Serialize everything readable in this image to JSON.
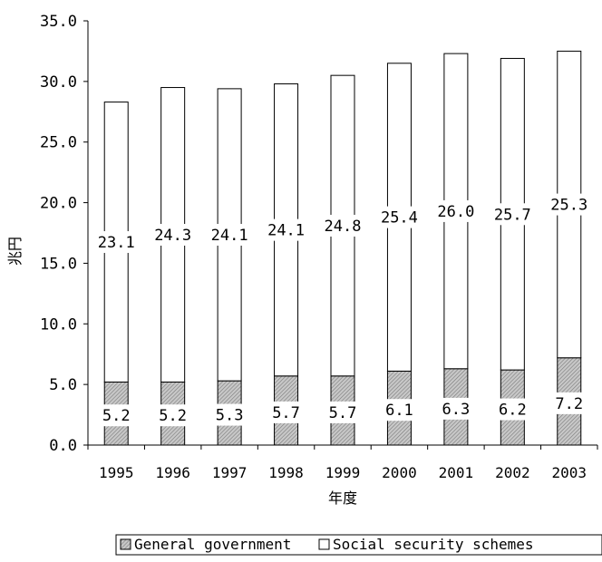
{
  "chart_data": {
    "type": "bar",
    "stacked": true,
    "categories": [
      "1995",
      "1996",
      "1997",
      "1998",
      "1999",
      "2000",
      "2001",
      "2002",
      "2003"
    ],
    "series": [
      {
        "name": "General government",
        "values": [
          5.2,
          5.2,
          5.3,
          5.7,
          5.7,
          6.1,
          6.3,
          6.2,
          7.2
        ],
        "labels": [
          "5.2",
          "5.2",
          "5.3",
          "5.7",
          "5.7",
          "6.1",
          "6.3",
          "6.2",
          "7.2"
        ],
        "fill": "hatched-gray"
      },
      {
        "name": "Social security schemes",
        "values": [
          23.1,
          24.3,
          24.1,
          24.1,
          24.8,
          25.4,
          26.0,
          25.7,
          25.3
        ],
        "labels": [
          "23.1",
          "24.3",
          "24.1",
          "24.1",
          "24.8",
          "25.4",
          "26.0",
          "25.7",
          "25.3"
        ],
        "fill": "#ffffff"
      }
    ],
    "yticks": [
      "0.0",
      "5.0",
      "10.0",
      "15.0",
      "20.0",
      "25.0",
      "30.0",
      "35.0"
    ],
    "ylim": [
      0,
      35
    ],
    "xlabel": "年度",
    "ylabel": "兆円",
    "grid": false,
    "legend_position": "bottom"
  }
}
